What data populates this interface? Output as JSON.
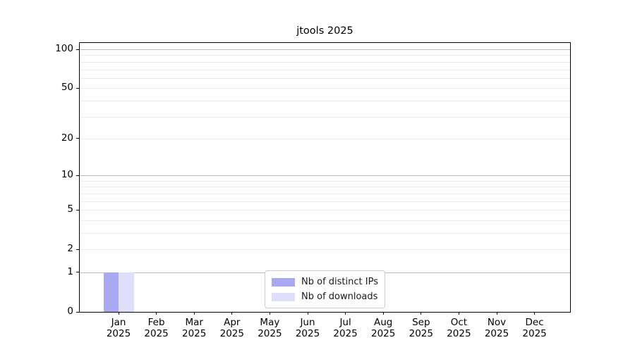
{
  "chart_data": {
    "type": "bar",
    "title": "jtools 2025",
    "x_categories": [
      "Jan",
      "Feb",
      "Mar",
      "Apr",
      "May",
      "Jun",
      "Jul",
      "Aug",
      "Sep",
      "Oct",
      "Nov",
      "Dec"
    ],
    "x_year_label": "2025",
    "series": [
      {
        "name": "Nb of distinct IPs",
        "color": "#a9a9f3",
        "values": [
          1,
          0,
          0,
          0,
          0,
          0,
          0,
          0,
          0,
          0,
          0,
          0
        ]
      },
      {
        "name": "Nb of downloads",
        "color": "#dedef8",
        "values": [
          1,
          0,
          0,
          0,
          0,
          0,
          0,
          0,
          0,
          0,
          0,
          0
        ]
      }
    ],
    "y_scale": "log10(1+x)",
    "y_tick_labels": [
      0,
      1,
      2,
      5,
      10,
      20,
      50,
      100
    ],
    "y_major_gridlines": [
      1,
      10,
      100
    ],
    "y_minor_gridlines": [
      2,
      3,
      4,
      5,
      6,
      7,
      8,
      9,
      20,
      30,
      40,
      50,
      60,
      70,
      80,
      90
    ],
    "ylim": [
      0,
      112
    ],
    "grid": true,
    "legend_position": "lower center",
    "colors": {
      "spine": "#000000",
      "grid_major": "#bbbbbb",
      "grid_minor": "#ebebeb",
      "text": "#000000",
      "legend_border": "#cccccc",
      "background": "#ffffff"
    }
  }
}
